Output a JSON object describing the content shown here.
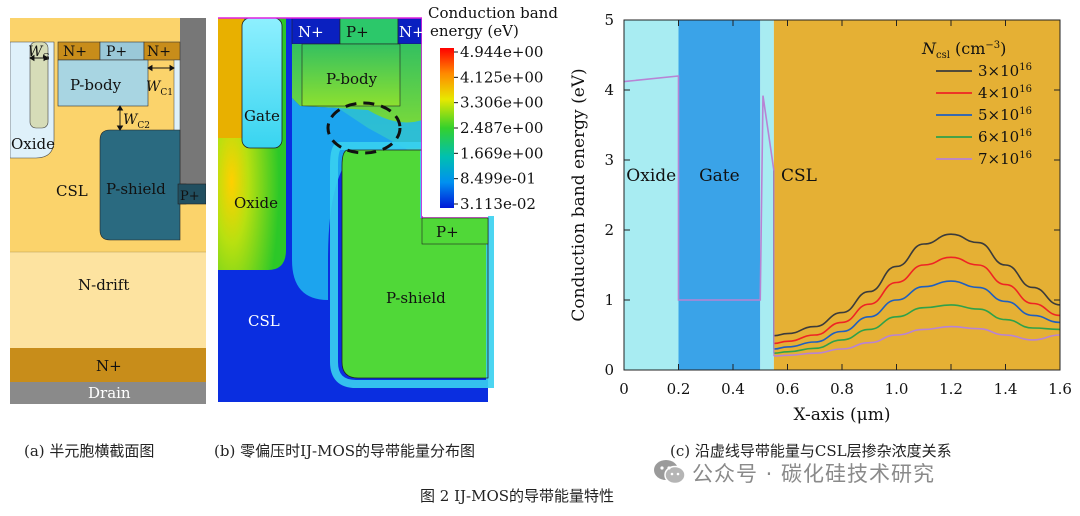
{
  "panel_a": {
    "labels": {
      "n_plus_left": "N+",
      "p_plus_top": "P+",
      "n_plus_right": "N+",
      "p_body": "P-body",
      "oxide": "Oxide",
      "csl": "CSL",
      "p_shield": "P-shield",
      "p_plus_side": "P+",
      "n_drift": "N-drift",
      "n_plus_bottom": "N+",
      "drain": "Drain",
      "wg_main": "W",
      "wg_sub": "G",
      "wc1_main": "W",
      "wc1_sub": "C1",
      "wc2_main": "W",
      "wc2_sub": "C2"
    }
  },
  "panel_b": {
    "labels": {
      "n_plus_left": "N+",
      "p_plus": "P+",
      "n_plus_right": "N+",
      "p_body": "P-body",
      "gate": "Gate",
      "oxide": "Oxide",
      "csl": "CSL",
      "p_shield": "P-shield",
      "p_plus_side": "P+"
    },
    "legend": {
      "title_line1": "Conduction band",
      "title_line2": "energy (eV)",
      "ticks": [
        "4.944e+00",
        "4.125e+00",
        "3.306e+00",
        "2.487e+00",
        "1.669e+00",
        "8.499e-01",
        "3.113e-02"
      ]
    }
  },
  "chart_data": {
    "type": "line",
    "xlabel": "X-axis (μm)",
    "ylabel": "Conduction band energy (eV)",
    "xlim": [
      0,
      1.6
    ],
    "ylim": [
      0,
      5
    ],
    "xticks": [
      "0",
      "0.2",
      "0.4",
      "0.6",
      "0.8",
      "1.0",
      "1.2",
      "1.4",
      "1.6"
    ],
    "yticks": [
      "0",
      "1",
      "2",
      "3",
      "4",
      "5"
    ],
    "regions": [
      {
        "name": "Oxide",
        "x": [
          0,
          0.2
        ],
        "color": "#a8ecf2"
      },
      {
        "name": "Gate",
        "x": [
          0.2,
          0.5
        ],
        "color": "#3aa3e8"
      },
      {
        "name": "",
        "x": [
          0.5,
          0.55
        ],
        "color": "#a8ecf2"
      },
      {
        "name": "CSL",
        "x": [
          0.55,
          1.6
        ],
        "color": "#e5b034"
      }
    ],
    "legend": {
      "title_main": "N",
      "title_sub": "csl",
      "title_unit": " (cm",
      "title_exp": "−3",
      "title_close": ")",
      "position": "top-right"
    },
    "shared_profile": {
      "x": [
        0,
        0.2,
        0.2,
        0.5,
        0.5,
        0.51,
        0.55
      ],
      "y": [
        4.12,
        4.2,
        1.0,
        1.0,
        1.0,
        3.92,
        2.85
      ]
    },
    "series": [
      {
        "name": "3×10",
        "exp": "16",
        "color": "#3b3b3b",
        "x": [
          0.55,
          0.6,
          0.7,
          0.8,
          0.9,
          1.0,
          1.1,
          1.2,
          1.3,
          1.4,
          1.5,
          1.6
        ],
        "y": [
          0.49,
          0.52,
          0.62,
          0.82,
          1.12,
          1.48,
          1.8,
          1.94,
          1.82,
          1.5,
          1.18,
          0.93
        ]
      },
      {
        "name": "4×10",
        "exp": "16",
        "color": "#ee2424",
        "x": [
          0.55,
          0.6,
          0.7,
          0.8,
          0.9,
          1.0,
          1.1,
          1.2,
          1.3,
          1.4,
          1.5,
          1.6
        ],
        "y": [
          0.38,
          0.41,
          0.5,
          0.68,
          0.94,
          1.25,
          1.5,
          1.61,
          1.5,
          1.22,
          0.95,
          0.78
        ]
      },
      {
        "name": "5×10",
        "exp": "16",
        "color": "#1f5fbf",
        "x": [
          0.55,
          0.6,
          0.7,
          0.8,
          0.9,
          1.0,
          1.1,
          1.2,
          1.3,
          1.4,
          1.5,
          1.6
        ],
        "y": [
          0.3,
          0.33,
          0.4,
          0.55,
          0.76,
          1.0,
          1.19,
          1.27,
          1.18,
          0.98,
          0.78,
          0.68
        ]
      },
      {
        "name": "6×10",
        "exp": "16",
        "color": "#2fa14a",
        "x": [
          0.55,
          0.6,
          0.7,
          0.8,
          0.9,
          1.0,
          1.1,
          1.2,
          1.3,
          1.4,
          1.5,
          1.6
        ],
        "y": [
          0.24,
          0.26,
          0.31,
          0.43,
          0.58,
          0.76,
          0.89,
          0.93,
          0.87,
          0.72,
          0.6,
          0.58
        ]
      },
      {
        "name": "7×10",
        "exp": "16",
        "color": "#b883d4",
        "x": [
          0.55,
          0.6,
          0.7,
          0.8,
          0.9,
          1.0,
          1.1,
          1.2,
          1.3,
          1.4,
          1.5,
          1.6
        ],
        "y": [
          0.2,
          0.21,
          0.24,
          0.3,
          0.39,
          0.5,
          0.58,
          0.62,
          0.59,
          0.5,
          0.43,
          0.5
        ]
      }
    ]
  },
  "captions": {
    "a": "(a) 半元胞横截面图",
    "b": "(b) 零偏压时IJ-MOS的导带能量分布图",
    "c": "(c) 沿虚线导带能量与CSL层掺杂浓度关系",
    "figure": "图 2 IJ-MOS的导带能量特性",
    "watermark": "公众号 · 碳化硅技术研究"
  }
}
